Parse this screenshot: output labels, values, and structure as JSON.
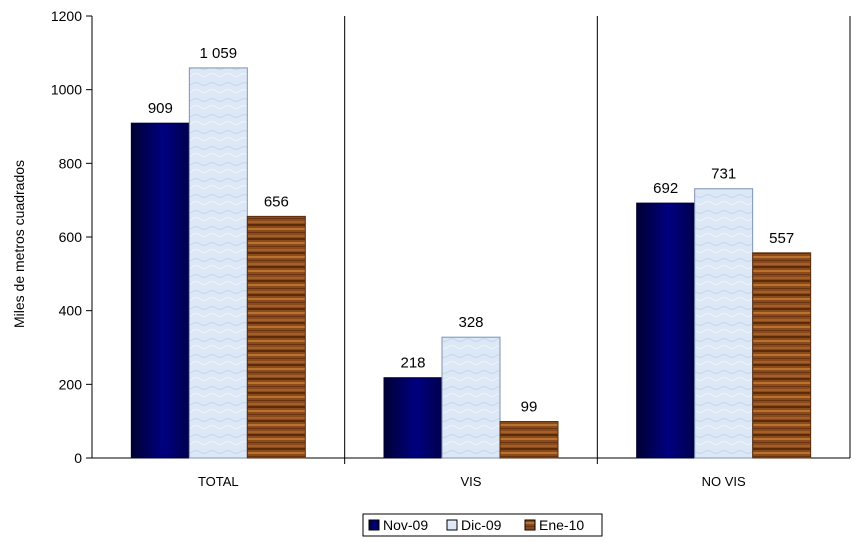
{
  "chart_data": {
    "type": "bar",
    "ylabel": "Miles de metros cuadrados",
    "ylim": [
      0,
      1200
    ],
    "yticks": [
      0,
      200,
      400,
      600,
      800,
      1000,
      1200
    ],
    "categories": [
      "TOTAL",
      "VIS",
      "NO VIS"
    ],
    "series": [
      {
        "name": "Nov-09",
        "values": [
          909,
          218,
          692
        ],
        "labels": [
          "909",
          "218",
          "692"
        ],
        "color": "#000066"
      },
      {
        "name": "Dic-09",
        "values": [
          1059,
          328,
          731
        ],
        "labels": [
          "1 059",
          "328",
          "731"
        ],
        "color": "#d9e6f5"
      },
      {
        "name": "Ene-10",
        "values": [
          656,
          99,
          557
        ],
        "labels": [
          "656",
          "99",
          "557"
        ],
        "color": "#8b4513"
      }
    ],
    "grid": false,
    "category_separators": true,
    "legend": "bottom"
  }
}
